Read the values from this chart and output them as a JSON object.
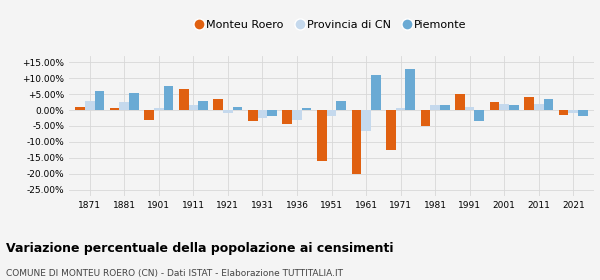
{
  "years": [
    1871,
    1881,
    1901,
    1911,
    1921,
    1931,
    1936,
    1951,
    1961,
    1971,
    1981,
    1991,
    2001,
    2011,
    2021
  ],
  "monteu_roero": [
    1.0,
    0.5,
    -3.0,
    6.5,
    3.5,
    -3.5,
    -4.5,
    -16.0,
    -20.0,
    -12.5,
    -5.0,
    5.0,
    2.5,
    4.0,
    -1.5
  ],
  "provincia_cn": [
    3.0,
    2.5,
    0.5,
    1.5,
    -1.0,
    -2.5,
    -3.0,
    -2.0,
    -6.5,
    0.5,
    1.5,
    1.0,
    2.0,
    2.0,
    -1.0
  ],
  "piemonte": [
    6.0,
    5.5,
    7.5,
    3.0,
    1.0,
    -2.0,
    0.5,
    3.0,
    11.0,
    13.0,
    1.5,
    -3.5,
    1.5,
    3.5,
    -2.0
  ],
  "color_monteu": "#e06010",
  "color_provincia": "#c5d9ed",
  "color_piemonte": "#6aaad4",
  "title": "Variazione percentuale della popolazione ai censimenti",
  "subtitle": "COMUNE DI MONTEU ROERO (CN) - Dati ISTAT - Elaborazione TUTTITALIA.IT",
  "legend_labels": [
    "Monteu Roero",
    "Provincia di CN",
    "Piemonte"
  ],
  "ylim": [
    -27,
    17
  ],
  "yticks": [
    -25,
    -20,
    -15,
    -10,
    -5,
    0,
    5,
    10,
    15
  ],
  "ytick_labels": [
    "-25.00%",
    "-20.00%",
    "-15.00%",
    "-10.00%",
    "-5.00%",
    "0.00%",
    "+5.00%",
    "+10.00%",
    "+15.00%"
  ],
  "background_color": "#f4f4f4",
  "grid_color": "#d8d8d8"
}
